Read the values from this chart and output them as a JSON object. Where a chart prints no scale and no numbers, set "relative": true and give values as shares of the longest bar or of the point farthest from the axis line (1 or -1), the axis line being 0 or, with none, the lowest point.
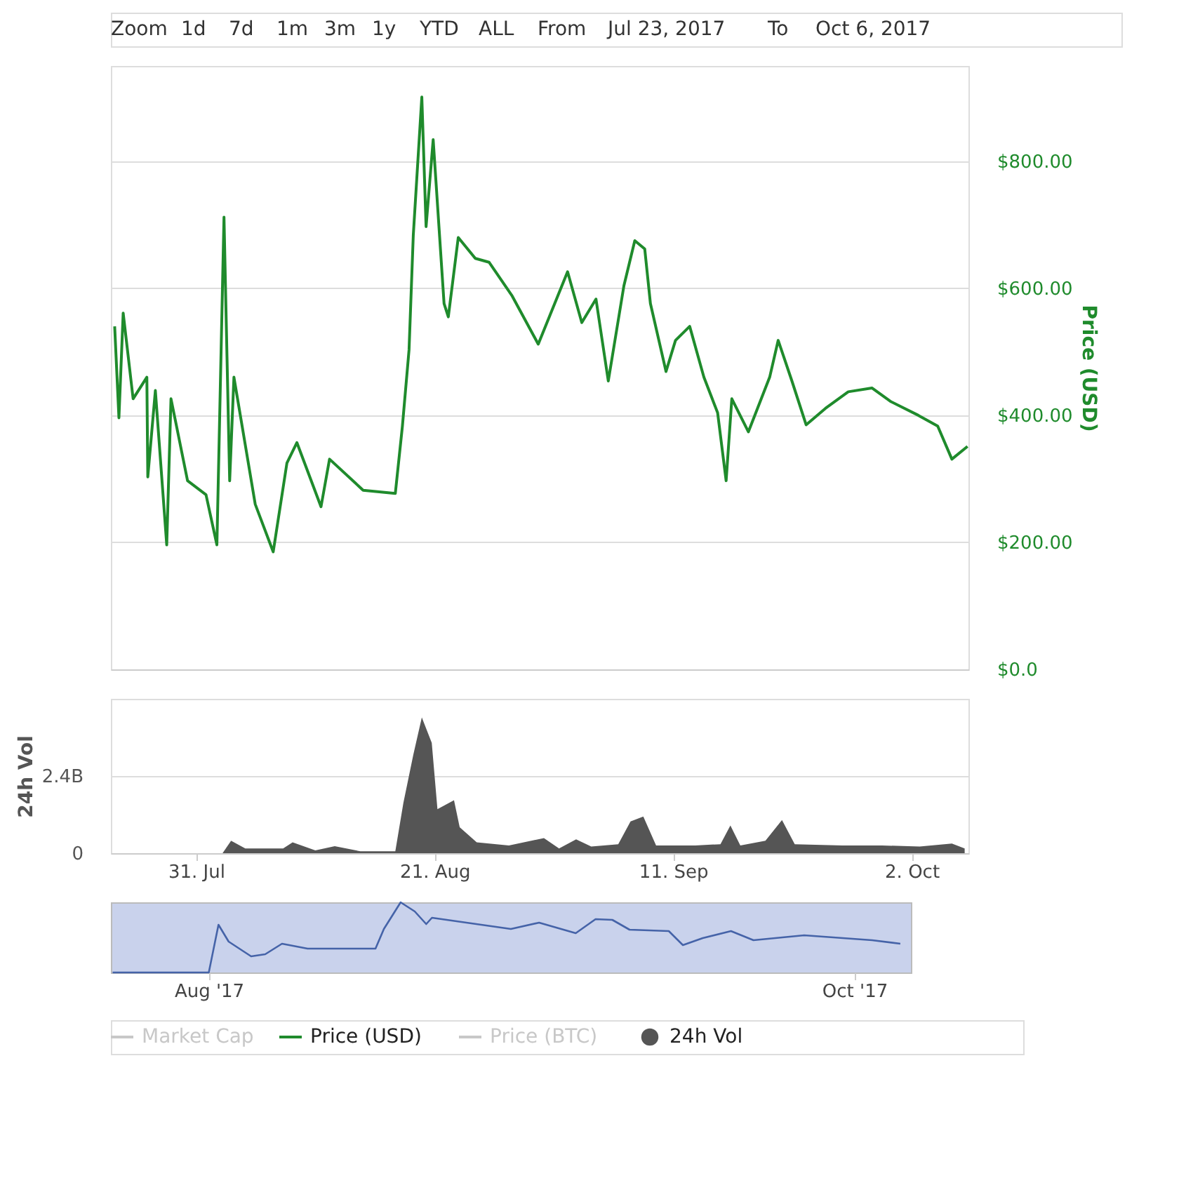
{
  "chart_data": [
    {
      "type": "line",
      "annotations": [
        "Zoom",
        "1d",
        "7d",
        "1m",
        "3m",
        "1y",
        "YTD",
        "ALL",
        "From",
        "Jul 23, 2017",
        "To",
        "Oct 6, 2017"
      ],
      "xlim": [
        "2017-07-23T12:00",
        "2017-10-07T00:00"
      ],
      "y2lim": [
        0,
        950
      ],
      "y2ticks": [
        {
          "value": 0,
          "label": "$0.0"
        },
        {
          "value": 200,
          "label": "$200.00"
        },
        {
          "value": 400,
          "label": "$400.00"
        },
        {
          "value": 600,
          "label": "$600.00"
        },
        {
          "value": 800,
          "label": "$800.00"
        }
      ],
      "y2label": "Price (USD)",
      "grid": "y",
      "legend": "bottom",
      "tick_labels": "y",
      "series": [
        {
          "name": "Price (USD)",
          "color": "#1f8b2c",
          "axis": "y2",
          "x": [
            "2017-07-23T20:00",
            "2017-07-24T05:00",
            "2017-07-24T14:00",
            "2017-07-25T11:00",
            "2017-07-26T16:00",
            "2017-07-26T18:00",
            "2017-07-27T10:00",
            "2017-07-28T10:00",
            "2017-07-28T19:00",
            "2017-07-30T06:00",
            "2017-07-31T21:00",
            "2017-08-01T20:00",
            "2017-08-02T11:00",
            "2017-08-02T23:00",
            "2017-08-03T08:00",
            "2017-08-05T05:00",
            "2017-08-06T19:00",
            "2017-08-08T00:00",
            "2017-08-08T21:00",
            "2017-08-11T00:00",
            "2017-08-11T18:00",
            "2017-08-14T17:00",
            "2017-08-17T13:00",
            "2017-08-18T04:00",
            "2017-08-18T18:00",
            "2017-08-19T03:00",
            "2017-08-19T21:00",
            "2017-08-20T06:00",
            "2017-08-20T21:00",
            "2017-08-21T20:00",
            "2017-08-22T05:00",
            "2017-08-23T02:00",
            "2017-08-24T14:00",
            "2017-08-25T19:00",
            "2017-08-27T19:00",
            "2017-08-30T03:00",
            "2017-09-01T17:00",
            "2017-09-02T23:00",
            "2017-09-04T05:00",
            "2017-09-05T07:00",
            "2017-09-06T16:00",
            "2017-09-07T15:00",
            "2017-09-08T12:00",
            "2017-09-09T00:00",
            "2017-09-10T09:00",
            "2017-09-11T05:00",
            "2017-09-12T11:00",
            "2017-09-13T17:00",
            "2017-09-14T22:00",
            "2017-09-15T16:00",
            "2017-09-16T04:00",
            "2017-09-17T15:00",
            "2017-09-19T12:00",
            "2017-09-20T06:00",
            "2017-09-21T11:00",
            "2017-09-22T17:00",
            "2017-09-24T10:00",
            "2017-09-26T10:00",
            "2017-09-28T12:00",
            "2017-09-30T03:00",
            "2017-10-02T14:00",
            "2017-10-04T07:00",
            "2017-10-05T13:00",
            "2017-10-06T22:00"
          ],
          "values": [
            540,
            396,
            561,
            426,
            460,
            303,
            439,
            196,
            426,
            297,
            275,
            196,
            712,
            297,
            460,
            260,
            185,
            325,
            357,
            256,
            331,
            282,
            277,
            383,
            503,
            684,
            901,
            697,
            834,
            576,
            555,
            680,
            647,
            641,
            589,
            512,
            626,
            546,
            583,
            454,
            604,
            675,
            662,
            576,
            469,
            518,
            540,
            460,
            404,
            297,
            426,
            374,
            460,
            518,
            454,
            385,
            411,
            437,
            443,
            422,
            400,
            383,
            331,
            351
          ]
        }
      ]
    },
    {
      "type": "area",
      "annotations": [
        "Market Cap",
        "Price (BTC)"
      ],
      "xlim": [
        "2017-07-23T12:00",
        "2017-10-07T00:00"
      ],
      "xticks": [
        {
          "value": "2017-07-31",
          "label": "31. Jul"
        },
        {
          "value": "2017-08-21",
          "label": "21. Aug"
        },
        {
          "value": "2017-09-11",
          "label": "11. Sep"
        },
        {
          "value": "2017-10-02",
          "label": "2. Oct"
        }
      ],
      "ylim": [
        0,
        4.8
      ],
      "yticks": [
        0,
        {
          "value": 2.4,
          "label": "2.4B"
        },
        {
          "value": 4.8,
          "label": null
        }
      ],
      "ylabel": "24h Vol",
      "grid": "y",
      "legend": "bottom",
      "series": [
        {
          "name": "24h Vol",
          "color": "#555555",
          "x": [
            "2017-08-02T08:00",
            "2017-08-03T02:00",
            "2017-08-04T08:00",
            "2017-08-07T16:00",
            "2017-08-08T12:00",
            "2017-08-10T12:00",
            "2017-08-12T05:00",
            "2017-08-14T11:00",
            "2017-08-17T13:00",
            "2017-08-18T06:00",
            "2017-08-19T03:00",
            "2017-08-19T21:00",
            "2017-08-20T18:00",
            "2017-08-21T06:00",
            "2017-08-22T17:00",
            "2017-08-23T05:00",
            "2017-08-24T17:00",
            "2017-08-27T13:00",
            "2017-08-30T15:00",
            "2017-08-31T23:00",
            "2017-09-02T11:00",
            "2017-09-03T19:00",
            "2017-09-06T04:00",
            "2017-09-07T06:00",
            "2017-09-08T09:00",
            "2017-09-09T12:00",
            "2017-09-12T23:00",
            "2017-09-15T04:00",
            "2017-09-16T01:00",
            "2017-09-16T22:00",
            "2017-09-19T03:00",
            "2017-09-20T14:00",
            "2017-09-21T17:00",
            "2017-09-25T22:00",
            "2017-09-29T09:00",
            "2017-10-02T17:00",
            "2017-10-05T13:00",
            "2017-10-06T16:00"
          ],
          "values": [
            0,
            0.39,
            0.15,
            0.15,
            0.34,
            0.09,
            0.22,
            0.06,
            0.06,
            1.56,
            3.06,
            4.22,
            3.43,
            1.37,
            1.65,
            0.81,
            0.34,
            0.24,
            0.47,
            0.15,
            0.43,
            0.21,
            0.28,
            0.99,
            1.14,
            0.24,
            0.24,
            0.28,
            0.86,
            0.24,
            0.39,
            1.03,
            0.28,
            0.24,
            0.24,
            0.21,
            0.3,
            0.15
          ]
        }
      ]
    },
    {
      "type": "line",
      "relative": true,
      "xlim": [
        "2017-07-22T18:00",
        "2017-10-06T08:00"
      ],
      "xticks": [
        {
          "value": "2017-08-01",
          "label": "Aug '17"
        },
        {
          "value": "2017-10-01",
          "label": "Oct '17"
        }
      ],
      "tick_labels": "x",
      "series": [
        {
          "color": "#4563a8",
          "x": [
            "2017-07-22T22:00",
            "2017-08-01T00:00",
            "2017-08-01T22:00",
            "2017-08-02T21:00",
            "2017-08-05T00:00",
            "2017-08-06T08:00",
            "2017-08-07T22:00",
            "2017-08-10T08:00",
            "2017-08-16T18:00",
            "2017-08-17T13:00",
            "2017-08-19T03:00",
            "2017-08-20T11:00",
            "2017-08-21T13:00",
            "2017-08-22T02:00",
            "2017-08-29T13:00",
            "2017-09-01T05:00",
            "2017-09-04T16:00",
            "2017-09-06T13:00",
            "2017-09-08T03:00",
            "2017-09-09T18:00",
            "2017-09-13T11:00",
            "2017-09-14T19:00",
            "2017-09-16T16:00",
            "2017-09-19T08:00",
            "2017-09-21T11:00",
            "2017-09-26T06:00",
            "2017-10-02T16:00",
            "2017-10-05T08:00"
          ],
          "values": [
            0,
            0,
            0.68,
            0.44,
            0.23,
            0.26,
            0.41,
            0.34,
            0.34,
            0.62,
            1.0,
            0.87,
            0.69,
            0.78,
            0.62,
            0.71,
            0.56,
            0.76,
            0.75,
            0.61,
            0.59,
            0.39,
            0.49,
            0.59,
            0.46,
            0.53,
            0.46,
            0.41
          ]
        }
      ]
    }
  ]
}
